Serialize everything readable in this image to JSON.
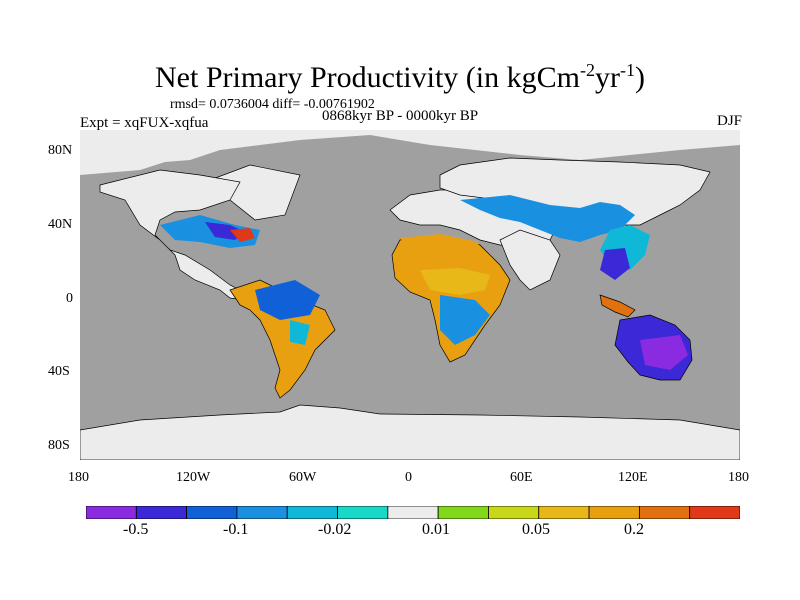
{
  "title": {
    "main": "Net Primary Productivity (in kgCm",
    "sup1": "-2",
    "mid": "yr",
    "sup2": "-1",
    "end": ")"
  },
  "stats_text": "rmsd= 0.0736004 diff= -0.00761902",
  "experiment_text": "Expt = xqFUX-xqfua",
  "period_text": "0868kyr BP - 0000kyr BP",
  "season_text": "DJF",
  "lat_labels": [
    "80N",
    "40N",
    "0",
    "40S",
    "80S"
  ],
  "lon_labels": [
    "180",
    "120W",
    "60W",
    "0",
    "60E",
    "120E",
    "180"
  ],
  "colorbar": {
    "colors": [
      "#8a2be2",
      "#3b28d6",
      "#1060d8",
      "#1a90e0",
      "#10b8d8",
      "#18d8c8",
      "#ececec",
      "#80d818",
      "#c8d818",
      "#e8b818",
      "#e8a010",
      "#e07010",
      "#e03818"
    ],
    "labels": [
      "-0.5",
      "-0.1",
      "-0.02",
      "0.01",
      "0.05",
      "0.2"
    ]
  },
  "map_colors": {
    "ocean": "#a0a0a0",
    "ice": "#ececec",
    "outline": "#000000"
  }
}
